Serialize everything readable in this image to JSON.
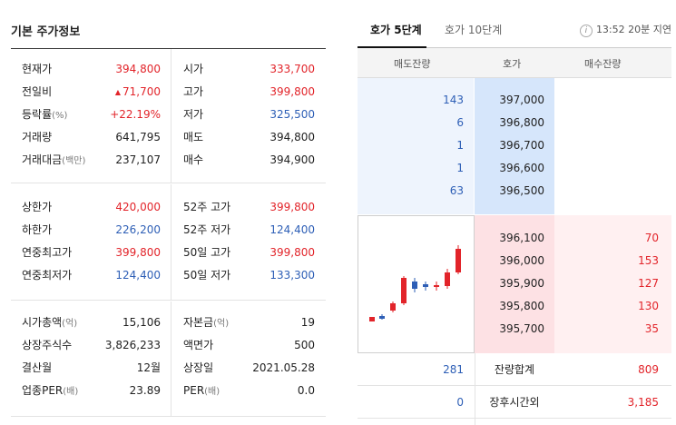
{
  "basic": {
    "title": "기본 주가정보",
    "section1": [
      {
        "l1": "현재가",
        "u1": "",
        "v1": "394,800",
        "c1": "red",
        "a1": "",
        "l2": "시가",
        "u2": "",
        "v2": "333,700",
        "c2": "red"
      },
      {
        "l1": "전일비",
        "u1": "",
        "v1": "71,700",
        "c1": "red",
        "a1": "▲",
        "l2": "고가",
        "u2": "",
        "v2": "399,800",
        "c2": "red"
      },
      {
        "l1": "등락률",
        "u1": "(%)",
        "v1": "+22.19%",
        "c1": "red",
        "a1": "",
        "l2": "저가",
        "u2": "",
        "v2": "325,500",
        "c2": "blue"
      },
      {
        "l1": "거래량",
        "u1": "",
        "v1": "641,795",
        "c1": "dark",
        "a1": "",
        "l2": "매도",
        "u2": "",
        "v2": "394,800",
        "c2": "dark"
      },
      {
        "l1": "거래대금",
        "u1": "(백만)",
        "v1": "237,107",
        "c1": "dark",
        "a1": "",
        "l2": "매수",
        "u2": "",
        "v2": "394,900",
        "c2": "dark"
      }
    ],
    "section2": [
      {
        "l1": "상한가",
        "u1": "",
        "v1": "420,000",
        "c1": "red",
        "a1": "",
        "l2": "52주 고가",
        "u2": "",
        "v2": "399,800",
        "c2": "red"
      },
      {
        "l1": "하한가",
        "u1": "",
        "v1": "226,200",
        "c1": "blue",
        "a1": "",
        "l2": "52주 저가",
        "u2": "",
        "v2": "124,400",
        "c2": "blue"
      },
      {
        "l1": "연중최고가",
        "u1": "",
        "v1": "399,800",
        "c1": "red",
        "a1": "",
        "l2": "50일 고가",
        "u2": "",
        "v2": "399,800",
        "c2": "red"
      },
      {
        "l1": "연중최저가",
        "u1": "",
        "v1": "124,400",
        "c1": "blue",
        "a1": "",
        "l2": "50일 저가",
        "u2": "",
        "v2": "133,300",
        "c2": "blue"
      }
    ],
    "section3": [
      {
        "l1": "시가총액",
        "u1": "(억)",
        "v1": "15,106",
        "c1": "dark",
        "a1": "",
        "l2": "자본금",
        "u2": "(억)",
        "v2": "19",
        "c2": "dark"
      },
      {
        "l1": "상장주식수",
        "u1": "",
        "v1": "3,826,233",
        "c1": "dark",
        "a1": "",
        "l2": "액면가",
        "u2": "",
        "v2": "500",
        "c2": "dark"
      },
      {
        "l1": "결산월",
        "u1": "",
        "v1": "12월",
        "c1": "dark",
        "a1": "",
        "l2": "상장일",
        "u2": "",
        "v2": "2021.05.28",
        "c2": "dark"
      },
      {
        "l1": "업종PER",
        "u1": "(배)",
        "v1": "23.89",
        "c1": "dark",
        "a1": "",
        "l2": "PER",
        "u2": "(배)",
        "v2": "0.0",
        "c2": "dark"
      }
    ]
  },
  "orderbook": {
    "tab1": "호가 5단계",
    "tab2": "호가 10단계",
    "info_icon": "i",
    "time": "13:52 20분 지연",
    "headers": {
      "sell": "매도잔량",
      "price": "호가",
      "buy": "매수잔량"
    },
    "asks": [
      {
        "qty": "143",
        "price": "397,000"
      },
      {
        "qty": "6",
        "price": "396,800"
      },
      {
        "qty": "1",
        "price": "396,700"
      },
      {
        "qty": "1",
        "price": "396,600"
      },
      {
        "qty": "63",
        "price": "396,500"
      }
    ],
    "bids": [
      {
        "qty": "70",
        "price": "396,100"
      },
      {
        "qty": "153",
        "price": "396,000"
      },
      {
        "qty": "127",
        "price": "395,900"
      },
      {
        "qty": "130",
        "price": "395,800"
      },
      {
        "qty": "35",
        "price": "395,700"
      }
    ],
    "footer": [
      {
        "left": "281",
        "label": "잔량합계",
        "right": "809"
      },
      {
        "left": "0",
        "label": "장후시간외",
        "right": "3,185"
      }
    ]
  },
  "colors": {
    "up": "#e2242a",
    "down": "#2e5fb6"
  }
}
